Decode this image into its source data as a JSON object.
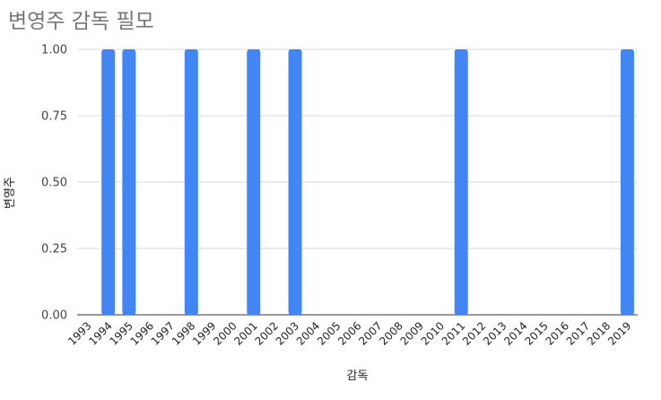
{
  "chart_data": {
    "type": "bar",
    "title": "변영주 감독 필모",
    "xlabel": "감독",
    "ylabel": "변영주",
    "ylim": [
      0,
      1
    ],
    "y_ticks": [
      "0.00",
      "0.25",
      "0.50",
      "0.75",
      "1.00"
    ],
    "grid": true,
    "legend": "none",
    "categories": [
      "1993",
      "1994",
      "1995",
      "1996",
      "1997",
      "1998",
      "1999",
      "2000",
      "2001",
      "2002",
      "2003",
      "2004",
      "2005",
      "2006",
      "2007",
      "2008",
      "2009",
      "2010",
      "2011",
      "2012",
      "2013",
      "2014",
      "2015",
      "2016",
      "2017",
      "2018",
      "2019"
    ],
    "values": [
      0,
      1,
      1,
      0,
      0,
      1,
      0,
      0,
      1,
      0,
      1,
      0,
      0,
      0,
      0,
      0,
      0,
      0,
      1,
      0,
      0,
      0,
      0,
      0,
      0,
      0,
      1
    ],
    "color": "#4285f4"
  }
}
